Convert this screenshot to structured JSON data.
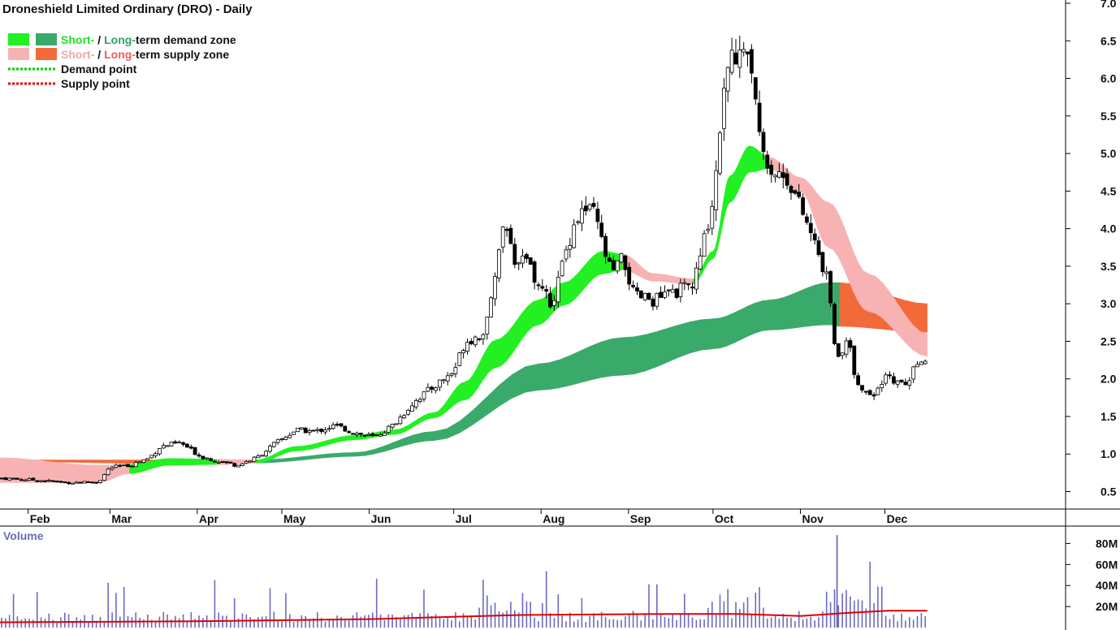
{
  "title": "Droneshield Limited Ordinary (DRO) - Daily",
  "legend": {
    "demand_short_word": "Short-",
    "demand_long_word": "Long-",
    "demand_suffix": "term demand zone",
    "supply_short_word": "Short-",
    "supply_long_word": "Long-",
    "supply_suffix": "term supply zone",
    "demand_point": "Demand point",
    "supply_point": "Supply point",
    "slash": "/"
  },
  "volume_label": "Volume",
  "colors": {
    "short_demand": "#22f022",
    "long_demand": "#3aaa6a",
    "short_supply": "#f7b3b3",
    "long_supply": "#f26a3a",
    "demand_point": "#00cc00",
    "supply_point": "#e00000",
    "volume_bar": "#6b6bc0",
    "volume_avg": "#e00000",
    "candle_down": "#000000",
    "candle_up": "#ffffff"
  },
  "chart_data": [
    {
      "type": "candlestick",
      "title": "Droneshield Limited Ordinary (DRO) - Daily",
      "x_tick_labels": [
        "Feb",
        "Mar",
        "Apr",
        "May",
        "Jun",
        "Jul",
        "Aug",
        "Sep",
        "Oct",
        "Nov",
        "Dec"
      ],
      "y_tick_labels": [
        "0.5",
        "1.0",
        "1.5",
        "2.0",
        "2.5",
        "3.0",
        "3.5",
        "4.0",
        "4.5",
        "5.0",
        "5.5",
        "6.0",
        "6.5",
        "7.0"
      ],
      "ylim": [
        0.3,
        7.0
      ],
      "grid": false,
      "legend_position": "top-left",
      "price_path": [
        [
          "Jan 22",
          0.68
        ],
        [
          "Feb 5",
          0.65
        ],
        [
          "Feb 15",
          0.62
        ],
        [
          "Feb 26",
          0.63
        ],
        [
          "Mar 1",
          0.82
        ],
        [
          "Mar 8",
          0.85
        ],
        [
          "Mar 15",
          0.95
        ],
        [
          "Mar 19",
          1.1
        ],
        [
          "Mar 26",
          1.15
        ],
        [
          "Apr 2",
          0.97
        ],
        [
          "Apr 15",
          0.85
        ],
        [
          "Apr 22",
          0.95
        ],
        [
          "Apr 29",
          1.15
        ],
        [
          "May 6",
          1.32
        ],
        [
          "May 13",
          1.3
        ],
        [
          "May 20",
          1.38
        ],
        [
          "May 27",
          1.28
        ],
        [
          "Jun 3",
          1.22
        ],
        [
          "Jun 10",
          1.4
        ],
        [
          "Jun 17",
          1.7
        ],
        [
          "Jun 24",
          1.9
        ],
        [
          "Jul 1",
          2.1
        ],
        [
          "Jul 5",
          2.5
        ],
        [
          "Jul 12",
          2.6
        ],
        [
          "Jul 16",
          3.5
        ],
        [
          "Jul 19",
          4.1
        ],
        [
          "Jul 23",
          3.4
        ],
        [
          "Jul 26",
          3.6
        ],
        [
          "Jul 31",
          3.25
        ],
        [
          "Aug 5",
          3.0
        ],
        [
          "Aug 9",
          3.6
        ],
        [
          "Aug 13",
          4.1
        ],
        [
          "Aug 16",
          4.25
        ],
        [
          "Aug 20",
          4.2
        ],
        [
          "Aug 23",
          3.75
        ],
        [
          "Aug 26",
          3.4
        ],
        [
          "Aug 30",
          3.6
        ],
        [
          "Sep 3",
          3.1
        ],
        [
          "Sep 10",
          3.05
        ],
        [
          "Sep 17",
          3.15
        ],
        [
          "Sep 24",
          3.25
        ],
        [
          "Sep 27",
          3.7
        ],
        [
          "Oct 1",
          4.4
        ],
        [
          "Oct 3",
          5.3
        ],
        [
          "Oct 7",
          6.2
        ],
        [
          "Oct 11",
          6.5
        ],
        [
          "Oct 14",
          6.3
        ],
        [
          "Oct 17",
          5.5
        ],
        [
          "Oct 21",
          4.8
        ],
        [
          "Oct 28",
          4.65
        ],
        [
          "Nov 4",
          4.0
        ],
        [
          "Nov 8",
          3.6
        ],
        [
          "Nov 11",
          3.25
        ],
        [
          "Nov 14",
          2.2
        ],
        [
          "Nov 18",
          2.5
        ],
        [
          "Nov 21",
          1.95
        ],
        [
          "Nov 25",
          1.75
        ],
        [
          "Nov 28",
          1.8
        ],
        [
          "Dec 2",
          2.05
        ],
        [
          "Dec 5",
          1.95
        ],
        [
          "Dec 9",
          1.9
        ],
        [
          "Dec 13",
          2.3
        ],
        [
          "Dec 16",
          2.15
        ]
      ],
      "zones": {
        "short_term": [
          [
            "Jan 22",
            0.62,
            0.95,
            "supply"
          ],
          [
            "Feb 26",
            0.62,
            0.85,
            "supply"
          ],
          [
            "Mar 8",
            0.74,
            0.86,
            "demand"
          ],
          [
            "Mar 22",
            0.85,
            0.94,
            "demand"
          ],
          [
            "Apr 8",
            0.86,
            0.93,
            "supply"
          ],
          [
            "Apr 22",
            0.88,
            0.92,
            "demand"
          ],
          [
            "May 6",
            1.04,
            1.1,
            "demand"
          ],
          [
            "May 27",
            1.19,
            1.25,
            "demand"
          ],
          [
            "Jun 10",
            1.26,
            1.32,
            "demand"
          ],
          [
            "Jun 24",
            1.48,
            1.55,
            "demand"
          ],
          [
            "Jul 5",
            1.72,
            1.96,
            "demand"
          ],
          [
            "Jul 16",
            2.15,
            2.52,
            "demand"
          ],
          [
            "Jul 31",
            2.72,
            3.05,
            "demand"
          ],
          [
            "Aug 9",
            2.98,
            3.28,
            "demand"
          ],
          [
            "Aug 23",
            3.4,
            3.7,
            "demand"
          ],
          [
            "Aug 30",
            3.45,
            3.66,
            "supply"
          ],
          [
            "Sep 10",
            3.3,
            3.4,
            "supply"
          ],
          [
            "Sep 24",
            3.26,
            3.33,
            "demand"
          ],
          [
            "Oct 1",
            3.6,
            3.7,
            "demand"
          ],
          [
            "Oct 7",
            4.35,
            4.7,
            "demand"
          ],
          [
            "Oct 14",
            4.75,
            5.1,
            "demand"
          ],
          [
            "Oct 21",
            4.8,
            4.95,
            "supply"
          ],
          [
            "Nov 1",
            4.5,
            4.68,
            "supply"
          ],
          [
            "Nov 11",
            3.75,
            4.35,
            "supply"
          ],
          [
            "Nov 25",
            2.9,
            3.4,
            "supply"
          ],
          [
            "Dec 16",
            2.3,
            2.6,
            "supply"
          ]
        ],
        "long_term": [
          [
            "Jan 22",
            0.9,
            0.92,
            "supply"
          ],
          [
            "Apr 8",
            0.86,
            0.92,
            "supply"
          ],
          [
            "Apr 22",
            0.88,
            0.92,
            "demand"
          ],
          [
            "May 27",
            0.97,
            1.02,
            "demand"
          ],
          [
            "Jun 24",
            1.18,
            1.3,
            "demand"
          ],
          [
            "Jul 31",
            1.85,
            2.2,
            "demand"
          ],
          [
            "Aug 30",
            2.05,
            2.55,
            "demand"
          ],
          [
            "Oct 1",
            2.4,
            2.8,
            "demand"
          ],
          [
            "Oct 21",
            2.65,
            3.05,
            "demand"
          ],
          [
            "Nov 11",
            2.72,
            3.28,
            "demand"
          ],
          [
            "Nov 15",
            2.7,
            3.28,
            "supply"
          ],
          [
            "Dec 16",
            2.62,
            3.0,
            "supply"
          ]
        ]
      }
    },
    {
      "type": "bar",
      "title": "Volume",
      "y_tick_labels": [
        "20M",
        "40M",
        "60M",
        "80M"
      ],
      "ylim": [
        0,
        95000000
      ],
      "volume_avg_path": [
        [
          "Jan 22",
          5
        ],
        [
          "Apr 1",
          6
        ],
        [
          "Jun 1",
          8
        ],
        [
          "Jul 25",
          12
        ],
        [
          "Sep 15",
          13
        ],
        [
          "Oct 10",
          13
        ],
        [
          "Nov 1",
          11
        ],
        [
          "Nov 18",
          14
        ],
        [
          "Dec 2",
          16
        ],
        [
          "Dec 16",
          16
        ]
      ]
    }
  ]
}
